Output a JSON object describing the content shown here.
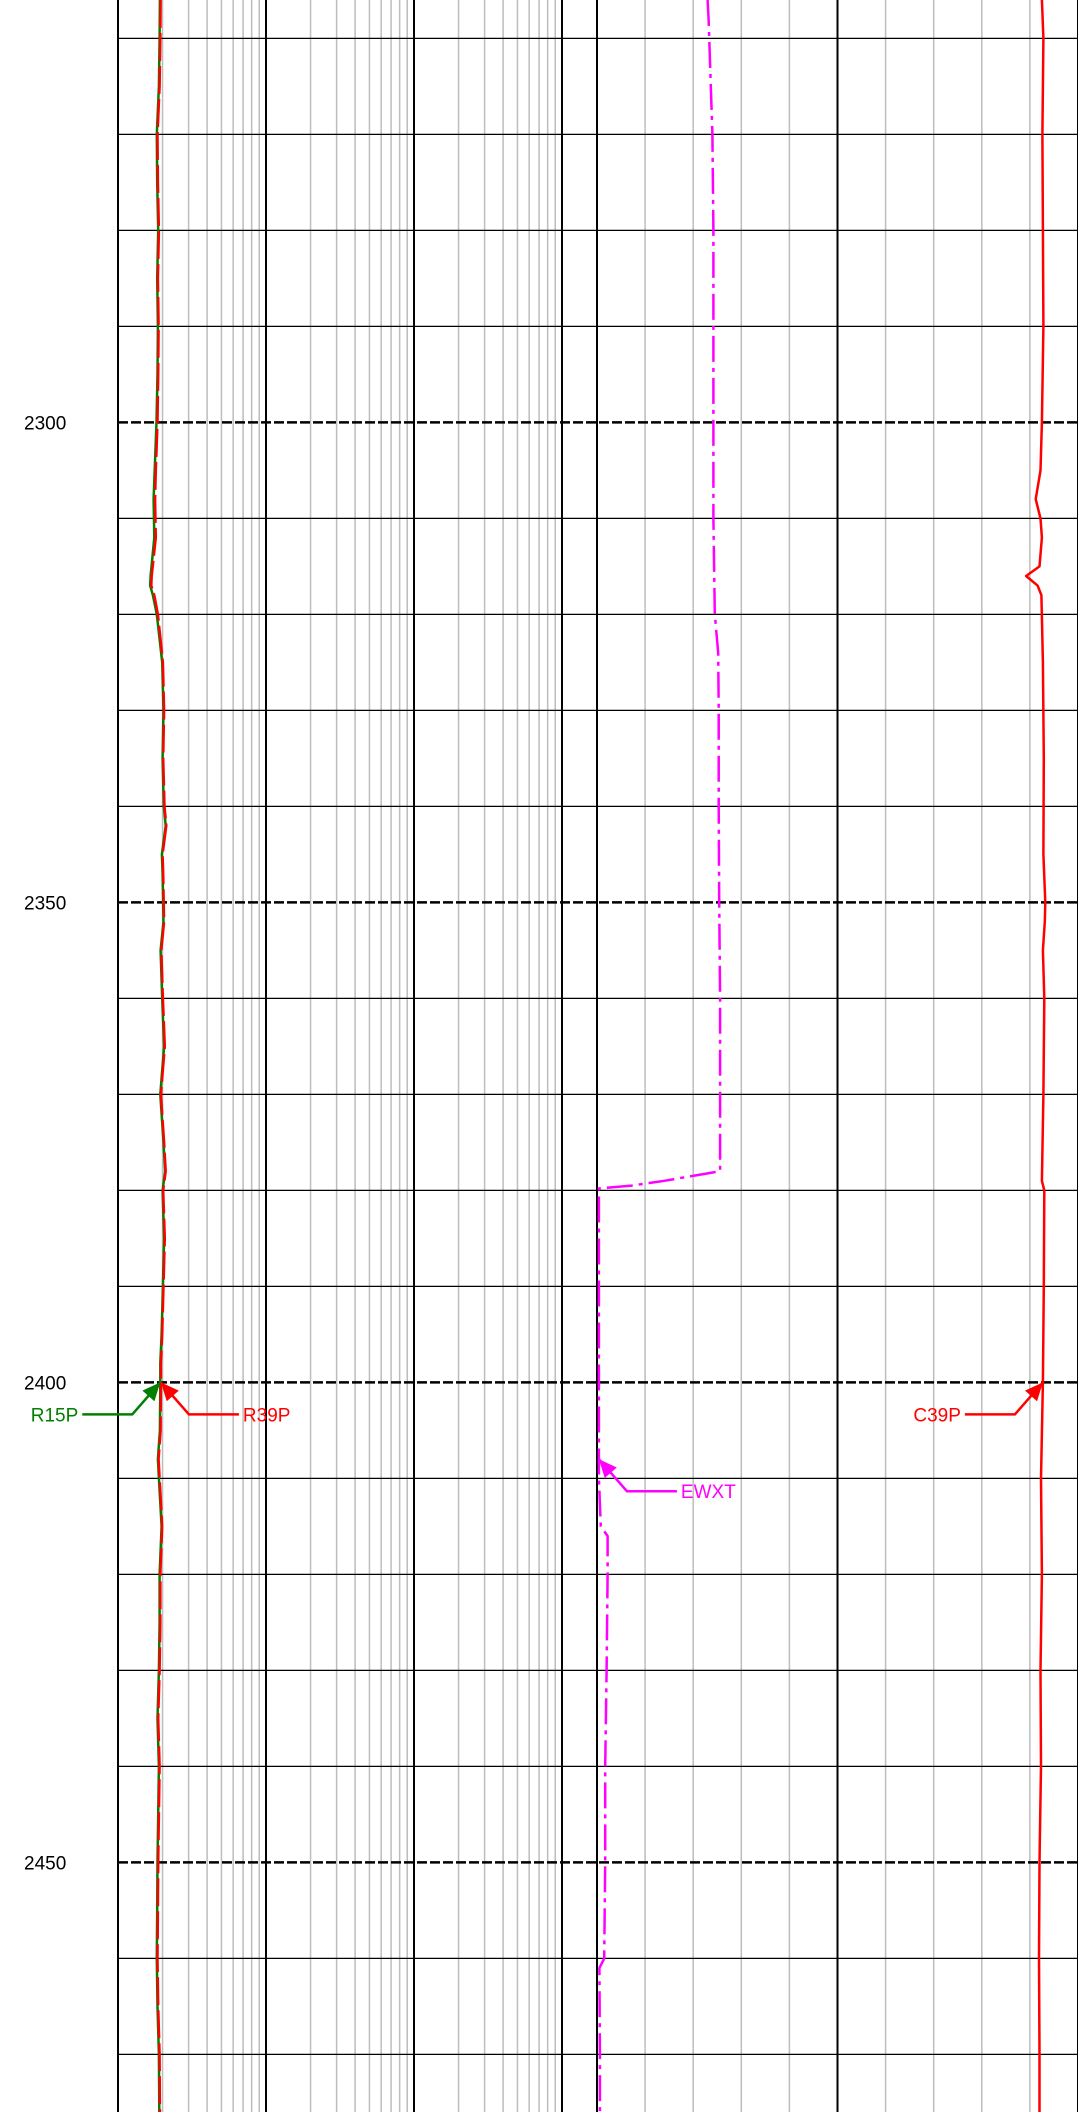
{
  "chart_data": {
    "type": "line",
    "depth_axis": {
      "range": [
        2256,
        2476
      ],
      "major_step": 50,
      "minor_step": 10,
      "tick_labels": [
        "2300",
        "2350",
        "2400",
        "2450"
      ]
    },
    "tracks": [
      {
        "name": "track-1",
        "scale": "log",
        "cycles": 3
      },
      {
        "name": "track-2",
        "scale": "linear",
        "divisions": 10
      }
    ],
    "series": [
      {
        "name": "R15P",
        "color": "#008000",
        "track": "track-1",
        "style": "solid",
        "points": [
          [
            2256,
            1.92
          ],
          [
            2260,
            1.91
          ],
          [
            2265,
            1.89
          ],
          [
            2270,
            1.83
          ],
          [
            2275,
            1.84
          ],
          [
            2280,
            1.87
          ],
          [
            2285,
            1.84
          ],
          [
            2290,
            1.86
          ],
          [
            2295,
            1.85
          ],
          [
            2300,
            1.82
          ],
          [
            2303,
            1.79
          ],
          [
            2305,
            1.77
          ],
          [
            2308,
            1.74
          ],
          [
            2312,
            1.76
          ],
          [
            2316,
            1.66
          ],
          [
            2317,
            1.65
          ],
          [
            2318,
            1.72
          ],
          [
            2320,
            1.83
          ],
          [
            2325,
            1.99
          ],
          [
            2330,
            2.03
          ],
          [
            2335,
            2.0
          ],
          [
            2340,
            2.04
          ],
          [
            2342,
            2.1
          ],
          [
            2345,
            1.98
          ],
          [
            2347,
            2.0
          ],
          [
            2352,
            2.03
          ],
          [
            2355,
            1.94
          ],
          [
            2360,
            1.99
          ],
          [
            2365,
            2.05
          ],
          [
            2370,
            1.93
          ],
          [
            2375,
            2.03
          ],
          [
            2378,
            2.08
          ],
          [
            2380,
            2.0
          ],
          [
            2385,
            2.05
          ],
          [
            2390,
            2.01
          ],
          [
            2395,
            1.97
          ],
          [
            2398,
            1.93
          ],
          [
            2400,
            1.93
          ],
          [
            2405,
            1.92
          ],
          [
            2408,
            1.86
          ],
          [
            2410,
            1.89
          ],
          [
            2415,
            1.97
          ],
          [
            2420,
            1.91
          ],
          [
            2425,
            1.91
          ],
          [
            2430,
            1.89
          ],
          [
            2435,
            1.85
          ],
          [
            2440,
            1.89
          ],
          [
            2445,
            1.87
          ],
          [
            2450,
            1.85
          ],
          [
            2455,
            1.84
          ],
          [
            2460,
            1.83
          ],
          [
            2465,
            1.85
          ],
          [
            2470,
            1.89
          ],
          [
            2476,
            1.9
          ]
        ]
      },
      {
        "name": "R39P",
        "color": "#ff0000",
        "track": "track-1",
        "style": "dashed",
        "points": [
          [
            2256,
            1.94
          ],
          [
            2260,
            1.93
          ],
          [
            2265,
            1.91
          ],
          [
            2270,
            1.85
          ],
          [
            2275,
            1.86
          ],
          [
            2280,
            1.89
          ],
          [
            2285,
            1.86
          ],
          [
            2290,
            1.88
          ],
          [
            2295,
            1.87
          ],
          [
            2300,
            1.85
          ],
          [
            2303,
            1.82
          ],
          [
            2305,
            1.8
          ],
          [
            2308,
            1.78
          ],
          [
            2312,
            1.8
          ],
          [
            2316,
            1.69
          ],
          [
            2317,
            1.68
          ],
          [
            2318,
            1.76
          ],
          [
            2320,
            1.86
          ],
          [
            2325,
            2.01
          ],
          [
            2330,
            2.05
          ],
          [
            2335,
            2.02
          ],
          [
            2340,
            2.06
          ],
          [
            2342,
            2.12
          ],
          [
            2345,
            2.0
          ],
          [
            2347,
            2.02
          ],
          [
            2352,
            2.05
          ],
          [
            2355,
            1.96
          ],
          [
            2360,
            2.01
          ],
          [
            2365,
            2.07
          ],
          [
            2370,
            1.95
          ],
          [
            2375,
            2.05
          ],
          [
            2378,
            2.1
          ],
          [
            2380,
            2.02
          ],
          [
            2385,
            2.07
          ],
          [
            2390,
            2.03
          ],
          [
            2395,
            1.99
          ],
          [
            2398,
            1.95
          ],
          [
            2400,
            1.95
          ],
          [
            2405,
            1.94
          ],
          [
            2408,
            1.88
          ],
          [
            2410,
            1.91
          ],
          [
            2415,
            1.99
          ],
          [
            2420,
            1.93
          ],
          [
            2425,
            1.93
          ],
          [
            2430,
            1.91
          ],
          [
            2435,
            1.87
          ],
          [
            2440,
            1.91
          ],
          [
            2445,
            1.89
          ],
          [
            2450,
            1.87
          ],
          [
            2455,
            1.86
          ],
          [
            2460,
            1.85
          ],
          [
            2465,
            1.87
          ],
          [
            2470,
            1.91
          ],
          [
            2476,
            1.92
          ]
        ]
      },
      {
        "name": "EWXT",
        "color": "#ff00ff",
        "track": "track-2",
        "style": "dash-dot",
        "points": [
          [
            2256,
            2.3
          ],
          [
            2258,
            2.32
          ],
          [
            2270,
            2.4
          ],
          [
            2280,
            2.42
          ],
          [
            2290,
            2.42
          ],
          [
            2300,
            2.42
          ],
          [
            2310,
            2.42
          ],
          [
            2320,
            2.45
          ],
          [
            2324,
            2.52
          ],
          [
            2330,
            2.53
          ],
          [
            2340,
            2.53
          ],
          [
            2350,
            2.54
          ],
          [
            2360,
            2.56
          ],
          [
            2370,
            2.56
          ],
          [
            2378,
            2.56
          ],
          [
            2379,
            1.4
          ],
          [
            2379.5,
            0.72
          ],
          [
            2379.8,
            0.04
          ],
          [
            2380,
            0.04
          ],
          [
            2390,
            0.04
          ],
          [
            2400,
            0.04
          ],
          [
            2410,
            0.04
          ],
          [
            2415,
            0.08
          ],
          [
            2416,
            0.22
          ],
          [
            2420,
            0.22
          ],
          [
            2430,
            0.2
          ],
          [
            2440,
            0.17
          ],
          [
            2450,
            0.17
          ],
          [
            2460,
            0.15
          ],
          [
            2461,
            0.05
          ],
          [
            2470,
            0.06
          ],
          [
            2476,
            0.06
          ]
        ]
      },
      {
        "name": "C39P",
        "color": "#ff0000",
        "track": "track-2",
        "style": "solid",
        "points": [
          [
            2256,
            9.25
          ],
          [
            2260,
            9.28
          ],
          [
            2270,
            9.26
          ],
          [
            2280,
            9.27
          ],
          [
            2290,
            9.28
          ],
          [
            2300,
            9.25
          ],
          [
            2305,
            9.22
          ],
          [
            2308,
            9.12
          ],
          [
            2310,
            9.22
          ],
          [
            2312,
            9.25
          ],
          [
            2315,
            9.2
          ],
          [
            2316,
            8.92
          ],
          [
            2317,
            9.16
          ],
          [
            2318,
            9.24
          ],
          [
            2325,
            9.27
          ],
          [
            2335,
            9.29
          ],
          [
            2345,
            9.28
          ],
          [
            2350,
            9.32
          ],
          [
            2352,
            9.31
          ],
          [
            2355,
            9.27
          ],
          [
            2360,
            9.3
          ],
          [
            2370,
            9.28
          ],
          [
            2379,
            9.25
          ],
          [
            2380,
            9.3
          ],
          [
            2390,
            9.29
          ],
          [
            2400,
            9.27
          ],
          [
            2410,
            9.23
          ],
          [
            2420,
            9.25
          ],
          [
            2430,
            9.22
          ],
          [
            2440,
            9.23
          ],
          [
            2450,
            9.2
          ],
          [
            2460,
            9.19
          ],
          [
            2470,
            9.2
          ],
          [
            2476,
            9.2
          ]
        ]
      }
    ],
    "annotations": [
      {
        "text": "R15P",
        "series": "R15P",
        "depth": 2400,
        "side": "left"
      },
      {
        "text": "R39P",
        "series": "R39P",
        "depth": 2400,
        "side": "right"
      },
      {
        "text": "EWXT",
        "series": "EWXT",
        "depth": 2408,
        "side": "right"
      },
      {
        "text": "C39P",
        "series": "C39P",
        "depth": 2400,
        "side": "left"
      }
    ]
  }
}
